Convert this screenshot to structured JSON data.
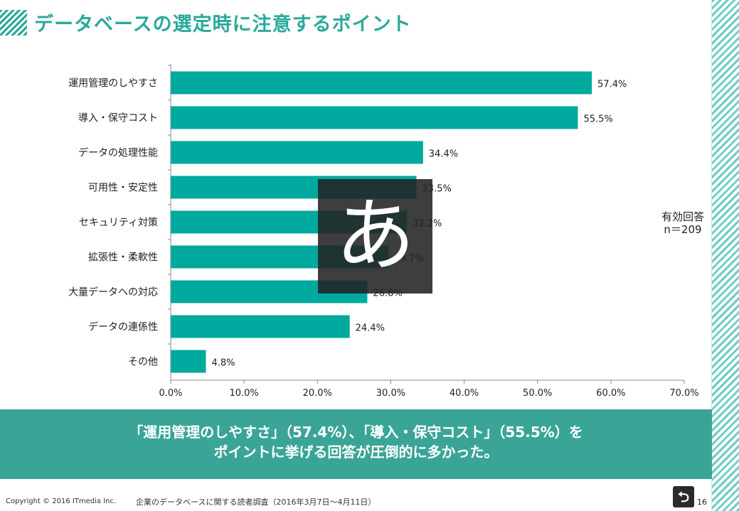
{
  "title": "データベースの選定時に注意するポイント",
  "sample_note": {
    "line1": "有効回答",
    "line2": "n＝209"
  },
  "chart_data": {
    "type": "bar",
    "orientation": "horizontal",
    "categories": [
      "運用管理のしやすさ",
      "導入・保守コスト",
      "データの処理性能",
      "可用性・安定性",
      "セキュリティ対策",
      "拡張性・柔軟性",
      "大量データへの対応",
      "データの連係性",
      "その他"
    ],
    "values": [
      57.4,
      55.5,
      34.4,
      33.5,
      32.2,
      29.7,
      26.8,
      24.4,
      4.8
    ],
    "value_labels": [
      "57.4%",
      "55.5%",
      "34.4%",
      "33.5%",
      "32.2%",
      "29.7%",
      "26.8%",
      "24.4%",
      "4.8%"
    ],
    "xlim": [
      0,
      70
    ],
    "xticks": [
      0,
      10,
      20,
      30,
      40,
      50,
      60,
      70
    ],
    "xtick_labels": [
      "0.0%",
      "10.0%",
      "20.0%",
      "30.0%",
      "40.0%",
      "50.0%",
      "60.0%",
      "70.0%"
    ],
    "grid": false,
    "bar_color": "#00a99d"
  },
  "banner": {
    "line1": "「運用管理のしやすさ」（57.4%）、「導入・保守コスト」（55.5%）を",
    "line2": "ポイントに挙げる回答が圧倒的に多かった。"
  },
  "footer": {
    "copyright": "Copyright © 2016 ITmedia Inc.",
    "source": "企業のデータベースに関する読者調査（2016年3月7日～4月11日）",
    "page": "16"
  },
  "ime_indicator": "あ",
  "colors": {
    "accent": "#2aa99a",
    "bar": "#00a99d",
    "banner": "#3aa597"
  }
}
